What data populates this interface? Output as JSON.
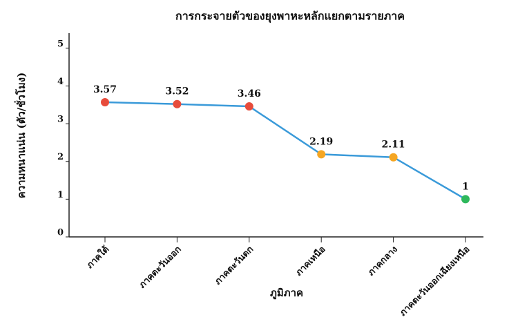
{
  "chart_data": {
    "type": "line",
    "title": "การกระจายตัวของยุงพาหะหลักแยกตามรายภาค",
    "x_label": "ภูมิภาค",
    "y_label": "ความหนาแน่น (ตัว/ชั่วโมง)",
    "categories": [
      "ภาคใต้",
      "ภาคตะวันออก",
      "ภาคตะวันตก",
      "ภาคเหนือ",
      "ภาคกลาง",
      "ภาคตะวันออกเฉียงเหนือ"
    ],
    "series": [
      {
        "name": "ความหนาแน่น",
        "color": "#3a9ad9",
        "values": [
          3.57,
          3.52,
          3.46,
          2.19,
          2.11,
          1
        ],
        "point_colors": [
          "#e74c3c",
          "#e74c3c",
          "#e74c3c",
          "#f5a623",
          "#f5a623",
          "#2eb85c"
        ]
      }
    ],
    "ylim": [
      0,
      5.4
    ],
    "yticks": [
      0,
      1,
      2,
      3,
      4,
      5
    ],
    "grid": false
  }
}
